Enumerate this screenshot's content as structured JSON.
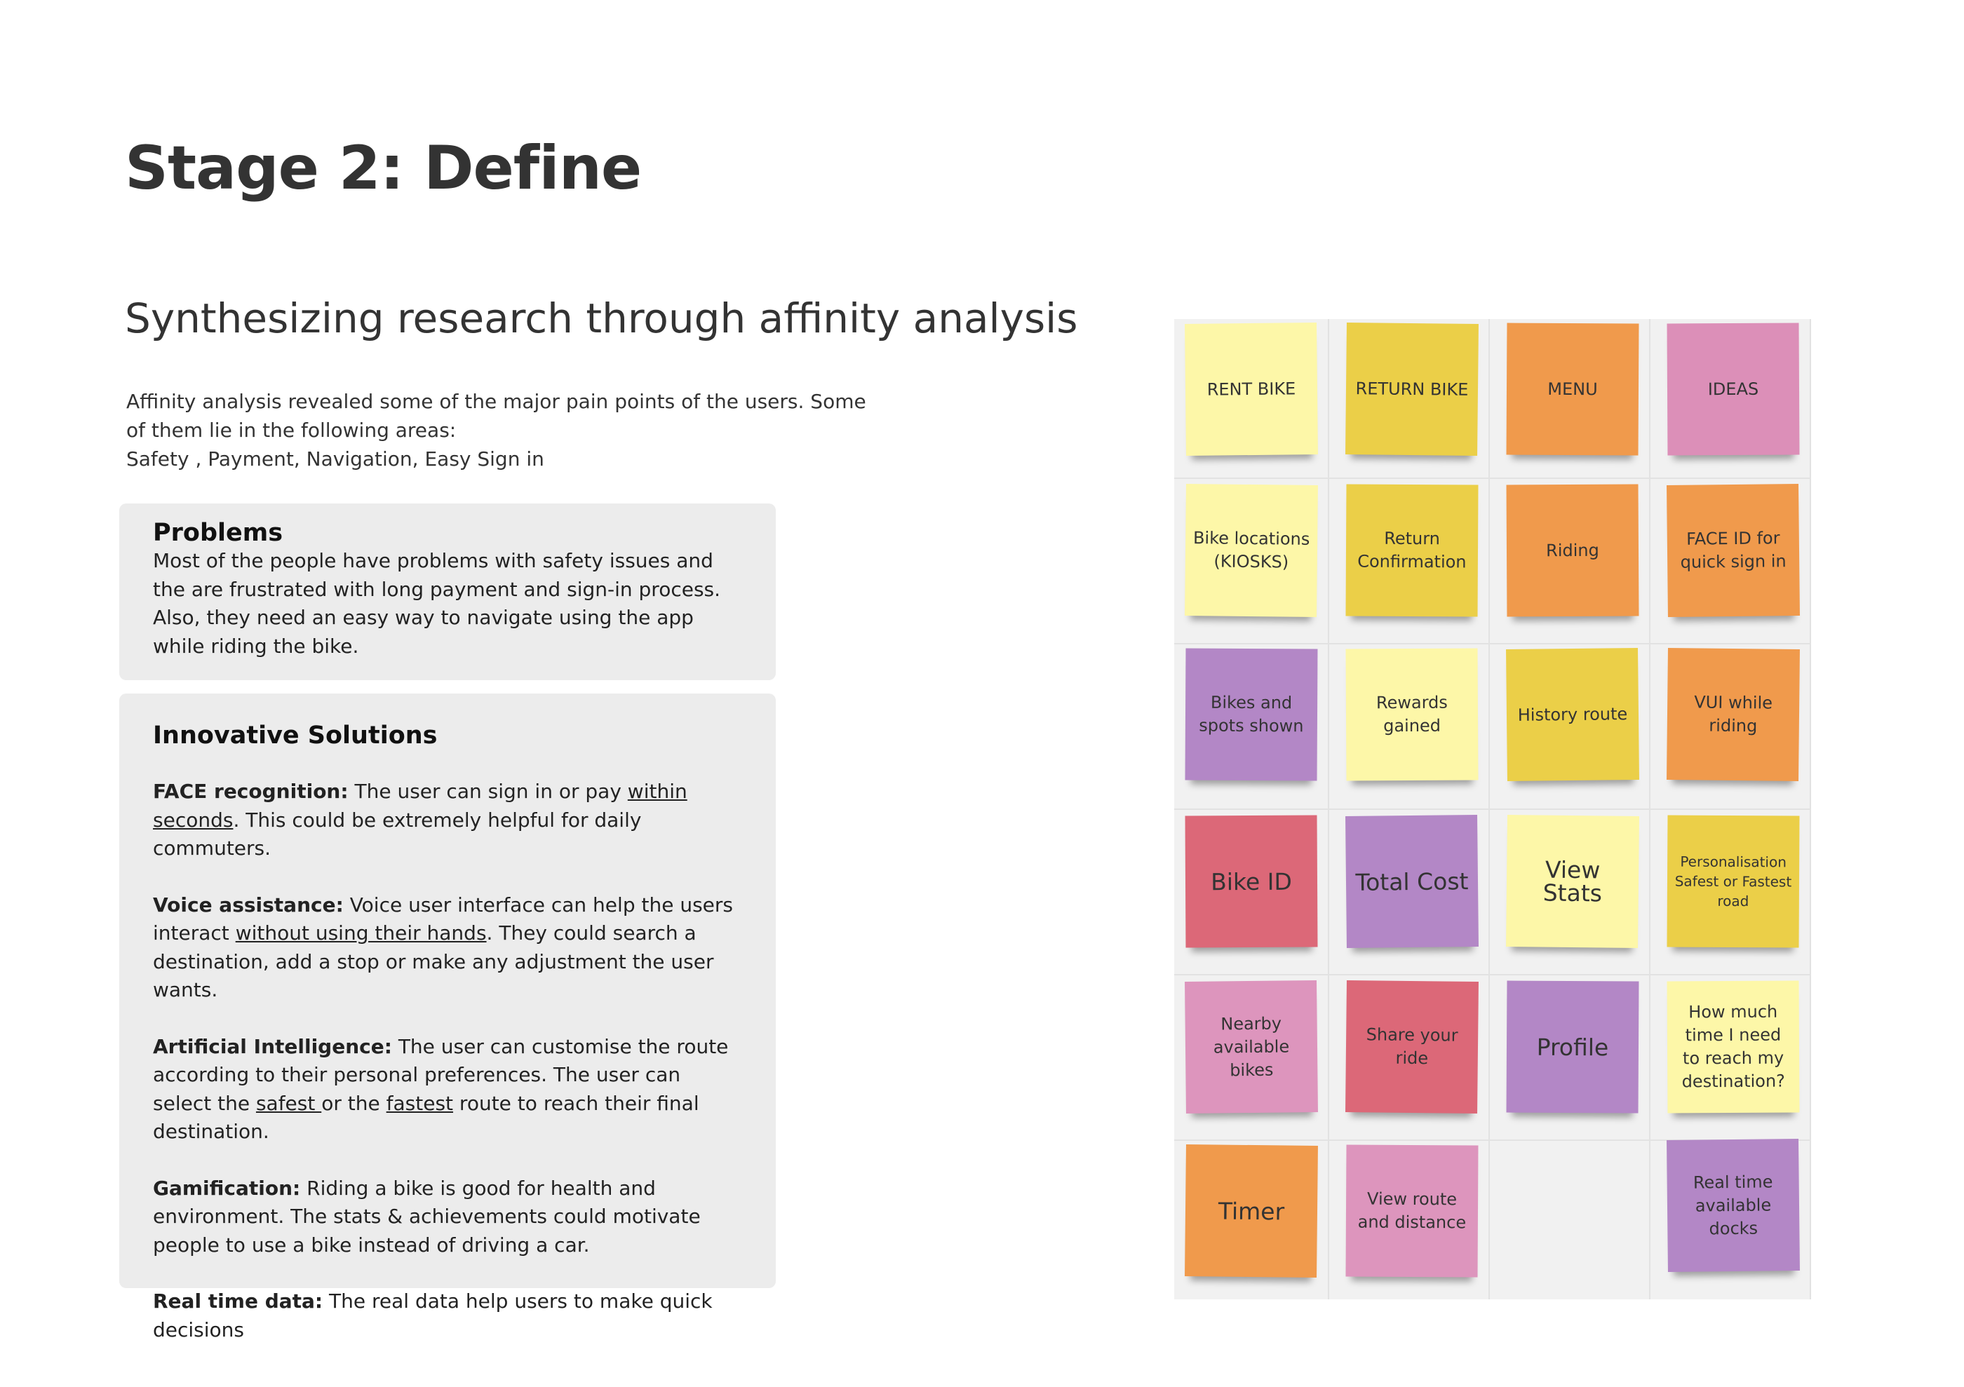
{
  "title": "Stage 2: Define",
  "subtitle": "Synthesizing research through affinity analysis",
  "intro": [
    "Affinity analysis revealed some of the major pain points of the users. Some",
    "of them lie in the following areas:",
    "Safety , Payment, Navigation, Easy Sign in"
  ],
  "problems": {
    "heading": "Problems",
    "text": "Most of the people have problems with safety issues and the are frustrated with long payment and sign-in process. Also, they need an easy way to navigate using the app while riding the bike."
  },
  "solutions": {
    "heading": "Innovative Solutions",
    "items": [
      {
        "label": "FACE recognition:",
        "segments": [
          {
            "text": " The user can sign in or pay ",
            "underline": false
          },
          {
            "text": "within seconds",
            "underline": true
          },
          {
            "text": ". This could be extremely helpful for daily commuters.",
            "underline": false
          }
        ]
      },
      {
        "label": "Voice assistance:",
        "segments": [
          {
            "text": " Voice user interface can help the users interact ",
            "underline": false
          },
          {
            "text": "without using their hands",
            "underline": true
          },
          {
            "text": ". They could search a destination, add a stop or make any adjustment the user wants.",
            "underline": false
          }
        ]
      },
      {
        "label": "Artificial Intelligence:",
        "segments": [
          {
            "text": " The user can customise the route according to their personal preferences. The user can select the ",
            "underline": false
          },
          {
            "text": "safest ",
            "underline": true
          },
          {
            "text": "or the ",
            "underline": false
          },
          {
            "text": "fastest",
            "underline": true
          },
          {
            "text": " route to reach their final destination.",
            "underline": false
          }
        ]
      },
      {
        "label": "Gamification:",
        "segments": [
          {
            "text": " Riding a bike is good for health and environment. The stats & achievements could motivate people to use a bike instead of driving a car.",
            "underline": false
          }
        ]
      },
      {
        "label": "Real time data:",
        "segments": [
          {
            "text": " The real data help users to make quick decisions",
            "underline": false
          }
        ]
      }
    ]
  },
  "board": {
    "rows": [
      [
        {
          "label": "RENT BIKE",
          "color": "#fdf7a8"
        },
        {
          "label": "RETURN BIKE",
          "color": "#ebcf48"
        },
        {
          "label": "MENU",
          "color": "#f09a4c"
        },
        {
          "label": "IDEAS",
          "color": "#dc8fb8"
        }
      ],
      [
        {
          "label": "Bike locations (KIOSKS)",
          "color": "#fdf7a8"
        },
        {
          "label": "Return Confirmation",
          "color": "#ebcf48"
        },
        {
          "label": "Riding",
          "color": "#f09a4c"
        },
        {
          "label": "FACE ID for quick sign in",
          "color": "#f09a4c"
        }
      ],
      [
        {
          "label": "Bikes and spots shown",
          "color": "#b387c6"
        },
        {
          "label": "Rewards gained",
          "color": "#fdf7a8"
        },
        {
          "label": "History route",
          "color": "#ebcf48"
        },
        {
          "label": "VUI while riding",
          "color": "#f09a4c"
        }
      ],
      [
        {
          "label": "Bike ID",
          "color": "#dc6878"
        },
        {
          "label": "Total Cost",
          "color": "#b387c6"
        },
        {
          "label": "View Stats",
          "color": "#fdf7a8"
        },
        {
          "label": "Personalisation Safest or Fastest road",
          "color": "#ebcf48"
        }
      ],
      [
        {
          "label": "Nearby available bikes",
          "color": "#dd95bd"
        },
        {
          "label": "Share your ride",
          "color": "#dc6878"
        },
        {
          "label": "Profile",
          "color": "#b387c6"
        },
        {
          "label": "How much time I need to reach my destination?",
          "color": "#fdf7a8"
        }
      ],
      [
        {
          "label": "Timer",
          "color": "#f09a4c"
        },
        {
          "label": "View route and distance",
          "color": "#dd95bd"
        },
        null,
        {
          "label": "Real time available docks",
          "color": "#b387c6"
        }
      ]
    ]
  }
}
